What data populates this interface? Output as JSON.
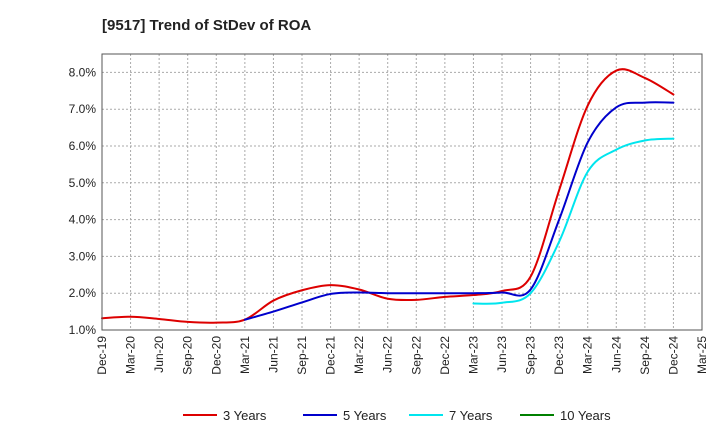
{
  "chart_data": {
    "type": "line",
    "title": "[9517]  Trend of StDev of ROA",
    "xlabel": "",
    "ylabel": "",
    "categories": [
      "Dec-19",
      "Mar-20",
      "Jun-20",
      "Sep-20",
      "Dec-20",
      "Mar-21",
      "Jun-21",
      "Sep-21",
      "Dec-21",
      "Mar-22",
      "Jun-22",
      "Sep-22",
      "Dec-22",
      "Mar-23",
      "Jun-23",
      "Sep-23",
      "Dec-23",
      "Mar-24",
      "Jun-24",
      "Sep-24",
      "Dec-24",
      "Mar-25"
    ],
    "y_ticks": [
      "1.0%",
      "2.0%",
      "3.0%",
      "4.0%",
      "5.0%",
      "6.0%",
      "7.0%",
      "8.0%"
    ],
    "ylim": [
      1.0,
      8.5
    ],
    "y_unit": "%",
    "grid": true,
    "legend_position": "bottom",
    "series": [
      {
        "name": "3 Years",
        "color": "#dd0000",
        "values": [
          1.32,
          1.36,
          1.3,
          1.22,
          1.2,
          1.28,
          1.8,
          2.08,
          2.22,
          2.1,
          1.85,
          1.82,
          1.9,
          1.95,
          2.06,
          2.45,
          4.8,
          7.1,
          8.05,
          7.85,
          7.4,
          null
        ]
      },
      {
        "name": "5 Years",
        "color": "#0000cc",
        "values": [
          null,
          null,
          null,
          null,
          null,
          1.28,
          1.5,
          1.75,
          1.98,
          2.02,
          2.0,
          2.0,
          2.0,
          2.0,
          2.02,
          2.1,
          4.0,
          6.1,
          7.05,
          7.18,
          7.18,
          null
        ]
      },
      {
        "name": "7 Years",
        "color": "#00e5ee",
        "values": [
          null,
          null,
          null,
          null,
          null,
          null,
          null,
          null,
          null,
          null,
          null,
          null,
          null,
          1.72,
          1.74,
          2.0,
          3.4,
          5.3,
          5.9,
          6.15,
          6.2,
          null
        ]
      },
      {
        "name": "10 Years",
        "color": "#008000",
        "values": [
          null,
          null,
          null,
          null,
          null,
          null,
          null,
          null,
          null,
          null,
          null,
          null,
          null,
          null,
          null,
          null,
          null,
          null,
          null,
          null,
          null,
          null
        ]
      }
    ]
  }
}
